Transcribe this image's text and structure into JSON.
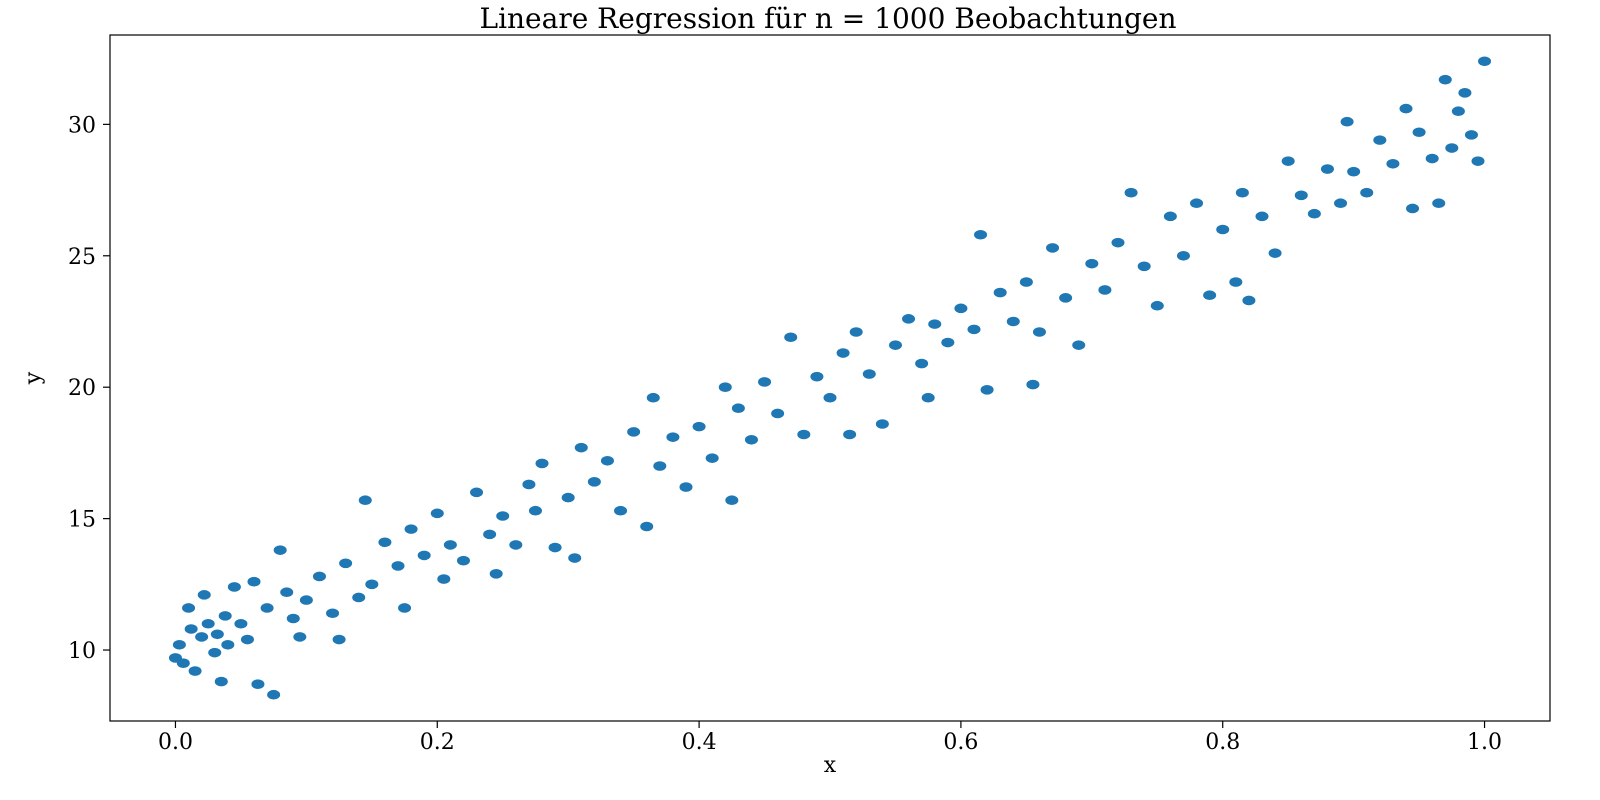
{
  "chart_data": {
    "type": "scatter",
    "title": "Lineare Regression für n = 1000 Beobachtungen",
    "xlabel": "x",
    "ylabel": "y",
    "xlim": [
      -0.05,
      1.05
    ],
    "ylim": [
      7.3,
      33.4
    ],
    "xticks": [
      0.0,
      0.2,
      0.4,
      0.6,
      0.8,
      1.0
    ],
    "xtick_labels": [
      "0.0",
      "0.2",
      "0.4",
      "0.6",
      "0.8",
      "1.0"
    ],
    "yticks": [
      10,
      15,
      20,
      25,
      30
    ],
    "ytick_labels": [
      "10",
      "15",
      "20",
      "25",
      "30"
    ],
    "grid": false,
    "legend": "none",
    "n_points": 1000,
    "point_color": "#1f77b4",
    "series": [
      {
        "points": [
          [
            0.0,
            9.7
          ],
          [
            0.003,
            10.2
          ],
          [
            0.006,
            9.5
          ],
          [
            0.01,
            11.6
          ],
          [
            0.012,
            10.8
          ],
          [
            0.015,
            9.2
          ],
          [
            0.02,
            10.5
          ],
          [
            0.022,
            12.1
          ],
          [
            0.025,
            11.0
          ],
          [
            0.03,
            9.9
          ],
          [
            0.032,
            10.6
          ],
          [
            0.035,
            8.8
          ],
          [
            0.038,
            11.3
          ],
          [
            0.04,
            10.2
          ],
          [
            0.045,
            12.4
          ],
          [
            0.05,
            11.0
          ],
          [
            0.055,
            10.4
          ],
          [
            0.06,
            12.6
          ],
          [
            0.063,
            8.7
          ],
          [
            0.07,
            11.6
          ],
          [
            0.075,
            8.3
          ],
          [
            0.08,
            13.8
          ],
          [
            0.085,
            12.2
          ],
          [
            0.09,
            11.2
          ],
          [
            0.095,
            10.5
          ],
          [
            0.1,
            11.9
          ],
          [
            0.11,
            12.8
          ],
          [
            0.12,
            11.4
          ],
          [
            0.125,
            10.4
          ],
          [
            0.13,
            13.3
          ],
          [
            0.14,
            12.0
          ],
          [
            0.145,
            15.7
          ],
          [
            0.15,
            12.5
          ],
          [
            0.16,
            14.1
          ],
          [
            0.17,
            13.2
          ],
          [
            0.175,
            11.6
          ],
          [
            0.18,
            14.6
          ],
          [
            0.19,
            13.6
          ],
          [
            0.2,
            15.2
          ],
          [
            0.205,
            12.7
          ],
          [
            0.21,
            14.0
          ],
          [
            0.22,
            13.4
          ],
          [
            0.23,
            16.0
          ],
          [
            0.24,
            14.4
          ],
          [
            0.245,
            12.9
          ],
          [
            0.25,
            15.1
          ],
          [
            0.26,
            14.0
          ],
          [
            0.27,
            16.3
          ],
          [
            0.275,
            15.3
          ],
          [
            0.28,
            17.1
          ],
          [
            0.29,
            13.9
          ],
          [
            0.3,
            15.8
          ],
          [
            0.305,
            13.5
          ],
          [
            0.31,
            17.7
          ],
          [
            0.32,
            16.4
          ],
          [
            0.33,
            17.2
          ],
          [
            0.34,
            15.3
          ],
          [
            0.35,
            18.3
          ],
          [
            0.36,
            14.7
          ],
          [
            0.365,
            19.6
          ],
          [
            0.37,
            17.0
          ],
          [
            0.38,
            18.1
          ],
          [
            0.39,
            16.2
          ],
          [
            0.4,
            18.5
          ],
          [
            0.41,
            17.3
          ],
          [
            0.42,
            20.0
          ],
          [
            0.425,
            15.7
          ],
          [
            0.43,
            19.2
          ],
          [
            0.44,
            18.0
          ],
          [
            0.45,
            20.2
          ],
          [
            0.46,
            19.0
          ],
          [
            0.47,
            21.9
          ],
          [
            0.48,
            18.2
          ],
          [
            0.49,
            20.4
          ],
          [
            0.5,
            19.6
          ],
          [
            0.51,
            21.3
          ],
          [
            0.515,
            18.2
          ],
          [
            0.52,
            22.1
          ],
          [
            0.53,
            20.5
          ],
          [
            0.54,
            18.6
          ],
          [
            0.55,
            21.6
          ],
          [
            0.56,
            22.6
          ],
          [
            0.57,
            20.9
          ],
          [
            0.575,
            19.6
          ],
          [
            0.58,
            22.4
          ],
          [
            0.59,
            21.7
          ],
          [
            0.6,
            23.0
          ],
          [
            0.61,
            22.2
          ],
          [
            0.615,
            25.8
          ],
          [
            0.62,
            19.9
          ],
          [
            0.63,
            23.6
          ],
          [
            0.64,
            22.5
          ],
          [
            0.65,
            24.0
          ],
          [
            0.655,
            20.1
          ],
          [
            0.66,
            22.1
          ],
          [
            0.67,
            25.3
          ],
          [
            0.68,
            23.4
          ],
          [
            0.69,
            21.6
          ],
          [
            0.7,
            24.7
          ],
          [
            0.71,
            23.7
          ],
          [
            0.72,
            25.5
          ],
          [
            0.73,
            27.4
          ],
          [
            0.74,
            24.6
          ],
          [
            0.75,
            23.1
          ],
          [
            0.76,
            26.5
          ],
          [
            0.77,
            25.0
          ],
          [
            0.78,
            27.0
          ],
          [
            0.79,
            23.5
          ],
          [
            0.8,
            26.0
          ],
          [
            0.81,
            24.0
          ],
          [
            0.815,
            27.4
          ],
          [
            0.82,
            23.3
          ],
          [
            0.83,
            26.5
          ],
          [
            0.84,
            25.1
          ],
          [
            0.85,
            28.6
          ],
          [
            0.86,
            27.3
          ],
          [
            0.87,
            26.6
          ],
          [
            0.88,
            28.3
          ],
          [
            0.89,
            27.0
          ],
          [
            0.895,
            30.1
          ],
          [
            0.9,
            28.2
          ],
          [
            0.91,
            27.4
          ],
          [
            0.92,
            29.4
          ],
          [
            0.93,
            28.5
          ],
          [
            0.94,
            30.6
          ],
          [
            0.945,
            26.8
          ],
          [
            0.95,
            29.7
          ],
          [
            0.96,
            28.7
          ],
          [
            0.965,
            27.0
          ],
          [
            0.97,
            31.7
          ],
          [
            0.975,
            29.1
          ],
          [
            0.98,
            30.5
          ],
          [
            0.985,
            31.2
          ],
          [
            0.99,
            29.6
          ],
          [
            0.995,
            28.6
          ],
          [
            1.0,
            32.4
          ]
        ]
      }
    ]
  }
}
